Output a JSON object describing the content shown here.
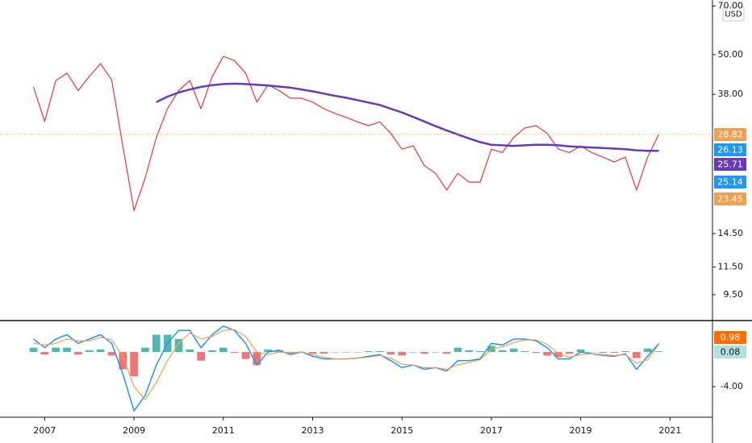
{
  "currency": "USD",
  "chart_data": [
    {
      "type": "line",
      "log_scale": true,
      "x": [
        2006.75,
        2007,
        2007.25,
        2007.5,
        2007.75,
        2008,
        2008.25,
        2008.5,
        2008.75,
        2009,
        2009.25,
        2009.5,
        2009.75,
        2010,
        2010.25,
        2010.5,
        2010.75,
        2011,
        2011.25,
        2011.5,
        2011.75,
        2012,
        2012.25,
        2012.5,
        2012.75,
        2013,
        2013.25,
        2013.5,
        2013.75,
        2014,
        2014.25,
        2014.5,
        2014.75,
        2015,
        2015.25,
        2015.5,
        2015.75,
        2016,
        2016.25,
        2016.5,
        2016.75,
        2017,
        2017.25,
        2017.5,
        2017.75,
        2018,
        2018.25,
        2018.5,
        2018.75,
        2019,
        2019.25,
        2019.5,
        2019.75,
        2020,
        2020.25,
        2020.5,
        2020.75
      ],
      "xlim": [
        2006.0,
        2021.95
      ],
      "ylim": [
        7.94,
        73
      ],
      "yticks": [
        {
          "value": 70,
          "label": "70.00"
        },
        {
          "value": 50,
          "label": "50.00"
        },
        {
          "value": 38,
          "label": "38.00"
        },
        {
          "value": 14.5,
          "label": "14.50"
        },
        {
          "value": 11.5,
          "label": "11.50"
        },
        {
          "value": 9.5,
          "label": "9.50"
        }
      ],
      "series": [
        {
          "color": "#e53935",
          "width": 1.2,
          "values": [
            40,
            31.5,
            41.8,
            44,
            39,
            43,
            47,
            42,
            26.6,
            17,
            21.3,
            28.2,
            34.4,
            39,
            41.8,
            34.4,
            43,
            49.4,
            48,
            44,
            36,
            40.6,
            39,
            37,
            37,
            36,
            34.4,
            33.3,
            32.4,
            31.4,
            30.6,
            31.4,
            29,
            26,
            26.6,
            23.2,
            22,
            19.6,
            22,
            20.7,
            20.7,
            26,
            25.4,
            28.2,
            30.1,
            30.6,
            29,
            26,
            25.4,
            26.6,
            25.4,
            24.6,
            23.8,
            24.6,
            19.6,
            24.6,
            28.82
          ]
        },
        {
          "color": "#673ab7",
          "width": 2.5,
          "values": [
            null,
            null,
            null,
            null,
            null,
            null,
            null,
            null,
            null,
            null,
            null,
            36,
            37.4,
            38.5,
            39.3,
            40,
            40.5,
            40.8,
            40.9,
            40.8,
            40.6,
            40.4,
            40.1,
            39.8,
            39.3,
            38.8,
            38.2,
            37.6,
            37.1,
            36.5,
            35.9,
            35.3,
            34.4,
            33.5,
            32.5,
            31.5,
            30.5,
            29.6,
            28.8,
            28,
            27.3,
            26.8,
            26.7,
            26.6,
            26.7,
            26.8,
            26.8,
            26.7,
            26.5,
            26.4,
            26.3,
            26.2,
            26.1,
            26,
            25.8,
            25.7,
            25.71
          ]
        }
      ],
      "last_price_line_color": "#f0a050",
      "badges": [
        {
          "label": "28.82",
          "color": "#f0a050"
        },
        {
          "label": "26.13",
          "color": "#2196f3"
        },
        {
          "label": "25.71",
          "color": "#673ab7"
        },
        {
          "label": "25.14",
          "color": "#2196f3"
        },
        {
          "label": "23.45",
          "color": "#f0a050"
        }
      ]
    },
    {
      "type": "line",
      "x": [
        2006.75,
        2007,
        2007.25,
        2007.5,
        2007.75,
        2008,
        2008.25,
        2008.5,
        2008.75,
        2009,
        2009.25,
        2009.5,
        2009.75,
        2010,
        2010.25,
        2010.5,
        2010.75,
        2011,
        2011.25,
        2011.5,
        2011.75,
        2012,
        2012.25,
        2012.5,
        2012.75,
        2013,
        2013.25,
        2013.5,
        2013.75,
        2014,
        2014.25,
        2014.5,
        2014.75,
        2015,
        2015.25,
        2015.5,
        2015.75,
        2016,
        2016.25,
        2016.5,
        2016.75,
        2017,
        2017.25,
        2017.5,
        2017.75,
        2018,
        2018.25,
        2018.5,
        2018.75,
        2019,
        2019.25,
        2019.5,
        2019.75,
        2020,
        2020.25,
        2020.5,
        2020.75
      ],
      "xlim": [
        2006.0,
        2021.95
      ],
      "xticks": [
        2007,
        2009,
        2011,
        2013,
        2015,
        2017,
        2019,
        2021
      ],
      "ylim": [
        -7.53,
        3.63
      ],
      "yticks": [
        {
          "value": -4,
          "label": "-4.00"
        }
      ],
      "histogram": {
        "color_up": "#26a69a",
        "color_down": "#ef5350",
        "values": [
          0.5,
          -0.3,
          0.5,
          0.5,
          -0.3,
          0.2,
          0.3,
          -0.4,
          -2,
          -2.8,
          0.5,
          2,
          2,
          1.5,
          0.3,
          -1,
          0.2,
          0.5,
          -0.1,
          -0.8,
          -1.5,
          0.3,
          0.2,
          -0.2,
          0,
          -0.2,
          -0.2,
          0,
          0,
          0,
          0.1,
          0.1,
          -0.3,
          -0.4,
          0,
          -0.2,
          0,
          -0.2,
          0.5,
          0.2,
          0.1,
          0.7,
          0.2,
          0.4,
          0.1,
          -0.1,
          -0.4,
          -0.6,
          -0.2,
          0.3,
          0,
          -0.1,
          -0.1,
          0.1,
          -0.7,
          0.4,
          0.08
        ]
      },
      "series": [
        {
          "color": "#2196f3",
          "width": 1.5,
          "values": [
            1.5,
            0.5,
            1.5,
            2,
            1,
            1.5,
            2,
            1,
            -2.5,
            -6.8,
            -5,
            -1.5,
            1,
            2.5,
            2.5,
            0.5,
            2,
            3,
            2.5,
            1,
            -1.5,
            0,
            0.2,
            -0.3,
            0,
            -0.5,
            -0.8,
            -0.8,
            -0.8,
            -0.7,
            -0.5,
            -0.3,
            -1,
            -1.8,
            -1.5,
            -2,
            -1.8,
            -2.2,
            -1,
            -1,
            -0.8,
            1,
            0.8,
            1.5,
            1.5,
            1.3,
            0.5,
            -0.8,
            -0.8,
            0,
            -0.2,
            -0.4,
            -0.5,
            -0.2,
            -2,
            -0.5,
            0.98
          ]
        },
        {
          "color": "#f0a050",
          "width": 1.2,
          "values": [
            1,
            0.8,
            1,
            1.5,
            1.3,
            1.3,
            1.7,
            1.4,
            -0.5,
            -4,
            -5.5,
            -3.5,
            -1,
            1,
            2.2,
            1.5,
            1.8,
            2.5,
            2.6,
            1.8,
            0,
            -0.3,
            0,
            -0.1,
            0,
            -0.3,
            -0.6,
            -0.8,
            -0.8,
            -0.7,
            -0.6,
            -0.4,
            -0.7,
            -1.4,
            -1.5,
            -1.8,
            -1.8,
            -2,
            -1.5,
            -1.2,
            -0.9,
            0.3,
            0.6,
            1.1,
            1.4,
            1.4,
            0.9,
            -0.2,
            -0.6,
            -0.3,
            -0.2,
            -0.3,
            -0.4,
            -0.3,
            -1.3,
            -0.9,
            0.9
          ]
        }
      ],
      "badges": [
        {
          "label": "0.98",
          "color": "#ff6d00"
        },
        {
          "label": "0.08",
          "color": "#b2dfdb"
        }
      ]
    }
  ]
}
